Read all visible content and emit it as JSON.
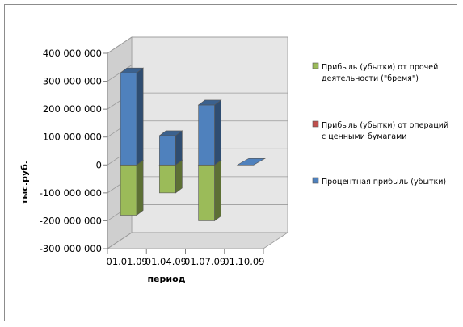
{
  "chart_data": {
    "type": "bar",
    "subtype": "3d-stacked-column",
    "categories": [
      "01.01.09",
      "01.04.09",
      "01.07.09",
      "01.10.09"
    ],
    "series": [
      {
        "name": "Прибыль (убытки) от прочей деятельности (\"бремя\")",
        "color": "#9bbb59",
        "values": [
          -180000000,
          -100000000,
          -200000000,
          0
        ]
      },
      {
        "name": "Прибыль (убытки) от операций с ценными бумагами",
        "color": "#c0504d",
        "values": [
          0,
          0,
          0,
          0
        ]
      },
      {
        "name": "Процентная прибыль (убытки)",
        "color": "#4f81bd",
        "values": [
          330000000,
          105000000,
          215000000,
          0
        ]
      }
    ],
    "y_ticks": [
      "400 000 000",
      "300 000 000",
      "200 000 000",
      "100 000 000",
      "0",
      "-100 000 000",
      "-200 000 000",
      "-300 000 000"
    ],
    "ylim": [
      -300000000,
      400000000
    ],
    "xlabel": "период",
    "ylabel": "тыс.руб.",
    "legend_position": "right",
    "grid": true
  }
}
